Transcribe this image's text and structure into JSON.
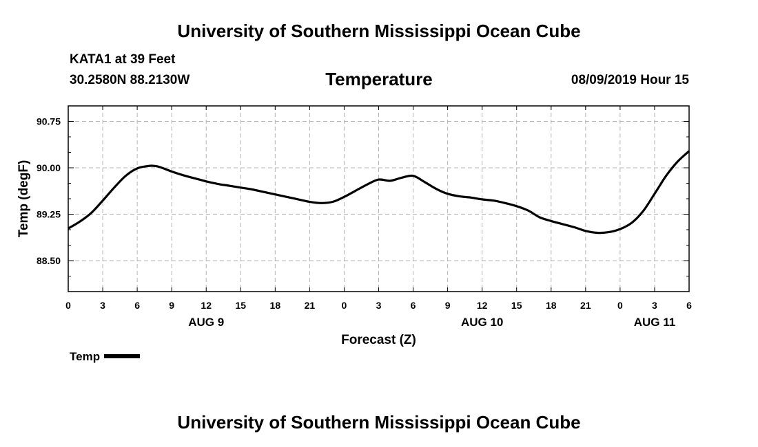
{
  "header": {
    "title": "University of Southern Mississippi Ocean Cube",
    "station": "KATA1 at 39 Feet",
    "coords": "30.2580N 88.2130W",
    "parameter": "Temperature",
    "datetime": "08/09/2019 Hour 15"
  },
  "footer": {
    "title": "University of Southern Mississippi Ocean Cube"
  },
  "legend": {
    "label": "Temp",
    "color": "#000000"
  },
  "chart_data": {
    "type": "line",
    "title": "Temperature",
    "xlabel": "Forecast (Z)",
    "ylabel": "Temp (degF)",
    "xlim": [
      0,
      54
    ],
    "ylim": [
      88.0,
      91.0
    ],
    "grid": true,
    "legend_position": "bottom-left",
    "x_ticks": [
      0,
      3,
      6,
      9,
      12,
      15,
      18,
      21,
      24,
      27,
      30,
      33,
      36,
      39,
      42,
      45,
      48,
      51,
      54
    ],
    "x_tick_labels": [
      "0",
      "3",
      "6",
      "9",
      "12",
      "15",
      "18",
      "21",
      "0",
      "3",
      "6",
      "9",
      "12",
      "15",
      "18",
      "21",
      "0",
      "3",
      "6"
    ],
    "date_labels": [
      {
        "x": 12,
        "text": "AUG 9"
      },
      {
        "x": 36,
        "text": "AUG 10"
      },
      {
        "x": 51,
        "text": "AUG 11"
      }
    ],
    "y_ticks": [
      88.5,
      89.25,
      90.0,
      90.75
    ],
    "y_tick_labels": [
      "88.50",
      "89.25",
      "90.00",
      "90.75"
    ],
    "series": [
      {
        "name": "Temp",
        "color": "#000000",
        "x": [
          0,
          1,
          2,
          3,
          4,
          5,
          6,
          7,
          7.5,
          8,
          9,
          10,
          11,
          12,
          13,
          14,
          15,
          16,
          17,
          18,
          19,
          20,
          21,
          22,
          23,
          24,
          25,
          26,
          27,
          28,
          29,
          30,
          31,
          32,
          33,
          34,
          35,
          36,
          37,
          38,
          39,
          40,
          41,
          42,
          43,
          44,
          45,
          46,
          47,
          48,
          49,
          50,
          51,
          52,
          53,
          54
        ],
        "y": [
          89.02,
          89.13,
          89.27,
          89.47,
          89.68,
          89.87,
          89.99,
          90.03,
          90.03,
          90.01,
          89.94,
          89.88,
          89.83,
          89.78,
          89.74,
          89.71,
          89.68,
          89.65,
          89.61,
          89.57,
          89.53,
          89.49,
          89.45,
          89.43,
          89.45,
          89.53,
          89.63,
          89.73,
          89.81,
          89.79,
          89.84,
          89.87,
          89.77,
          89.66,
          89.58,
          89.54,
          89.52,
          89.49,
          89.47,
          89.43,
          89.38,
          89.31,
          89.2,
          89.14,
          89.09,
          89.04,
          88.98,
          88.95,
          88.96,
          89.01,
          89.11,
          89.3,
          89.58,
          89.87,
          90.1,
          90.27
        ]
      }
    ]
  }
}
